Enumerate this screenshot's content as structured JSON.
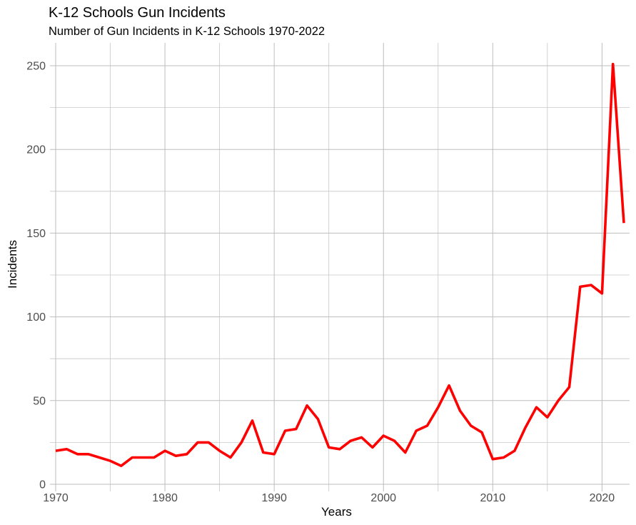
{
  "chart_data": {
    "type": "line",
    "title": "K-12 Schools Gun Incidents",
    "subtitle": "Number of Gun Incidents in K-12 Schools 1970-2022",
    "xlabel": "Years",
    "ylabel": "Incidents",
    "xlim": [
      1970,
      2022
    ],
    "ylim": [
      0,
      262
    ],
    "x_ticks": [
      1970,
      1980,
      1990,
      2000,
      2010,
      2020
    ],
    "y_ticks": [
      0,
      50,
      100,
      150,
      200,
      250
    ],
    "grid": true,
    "series": [
      {
        "color": "#ff0000",
        "x": [
          1970,
          1971,
          1972,
          1973,
          1974,
          1975,
          1976,
          1977,
          1978,
          1979,
          1980,
          1981,
          1982,
          1983,
          1984,
          1985,
          1986,
          1987,
          1988,
          1989,
          1990,
          1991,
          1992,
          1993,
          1994,
          1995,
          1996,
          1997,
          1998,
          1999,
          2000,
          2001,
          2002,
          2003,
          2004,
          2005,
          2006,
          2007,
          2008,
          2009,
          2010,
          2011,
          2012,
          2013,
          2014,
          2015,
          2016,
          2017,
          2018,
          2019,
          2020,
          2021,
          2022
        ],
        "values": [
          20,
          21,
          18,
          18,
          16,
          14,
          11,
          16,
          16,
          16,
          20,
          17,
          18,
          25,
          25,
          20,
          16,
          25,
          38,
          19,
          18,
          32,
          33,
          47,
          39,
          22,
          21,
          26,
          28,
          22,
          29,
          26,
          19,
          32,
          35,
          46,
          59,
          44,
          35,
          31,
          15,
          16,
          20,
          34,
          46,
          40,
          50,
          58,
          118,
          119,
          114,
          251,
          156
        ]
      }
    ]
  }
}
